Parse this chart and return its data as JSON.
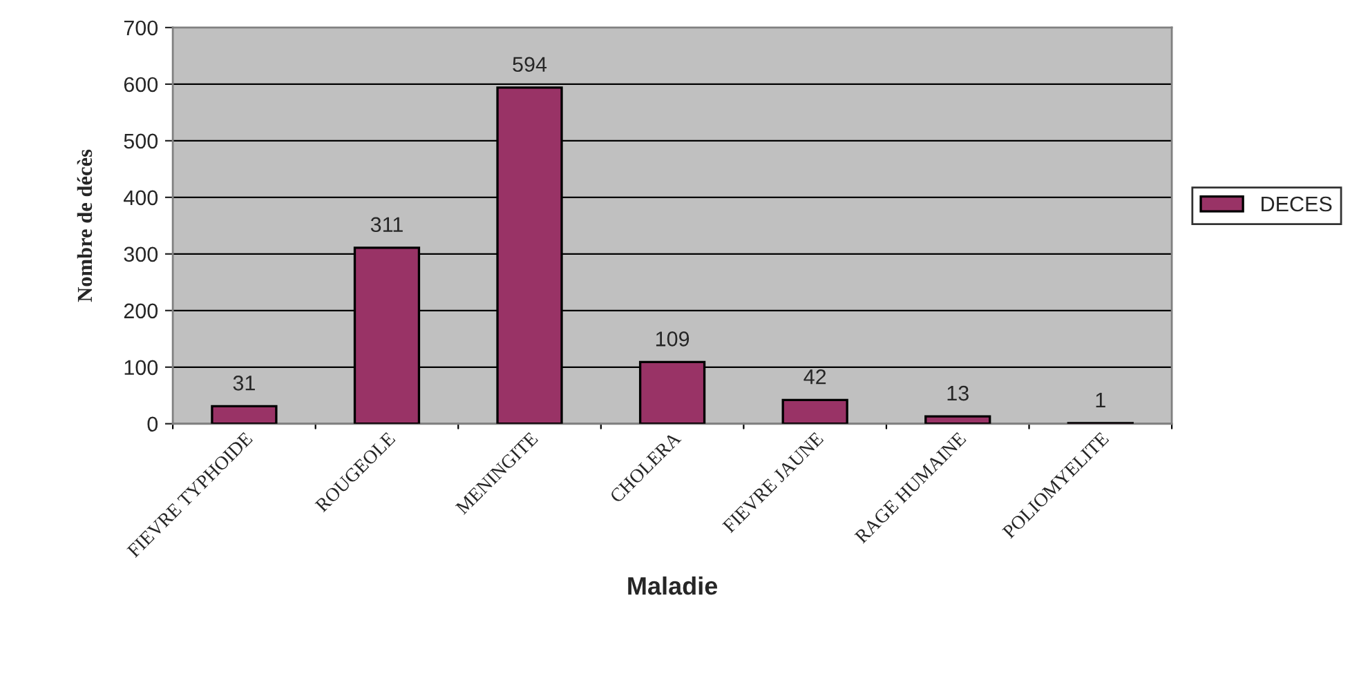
{
  "chart_data": {
    "type": "bar",
    "xlabel": "Maladie",
    "ylabel": "Nombre de décès",
    "categories": [
      "FIEVRE TYPHOIDE",
      "ROUGEOLE",
      "MENINGITE",
      "CHOLERA",
      "FIEVRE JAUNE",
      "RAGE HUMAINE",
      "POLIOMYELITE"
    ],
    "series": [
      {
        "name": "DECES",
        "color": "#993366",
        "values": [
          31,
          311,
          594,
          109,
          42,
          13,
          1
        ]
      }
    ],
    "ylim": [
      0,
      700
    ],
    "yticks": [
      0,
      100,
      200,
      300,
      400,
      500,
      600,
      700
    ],
    "grid": "y",
    "legend": "right",
    "data_labels": true
  }
}
